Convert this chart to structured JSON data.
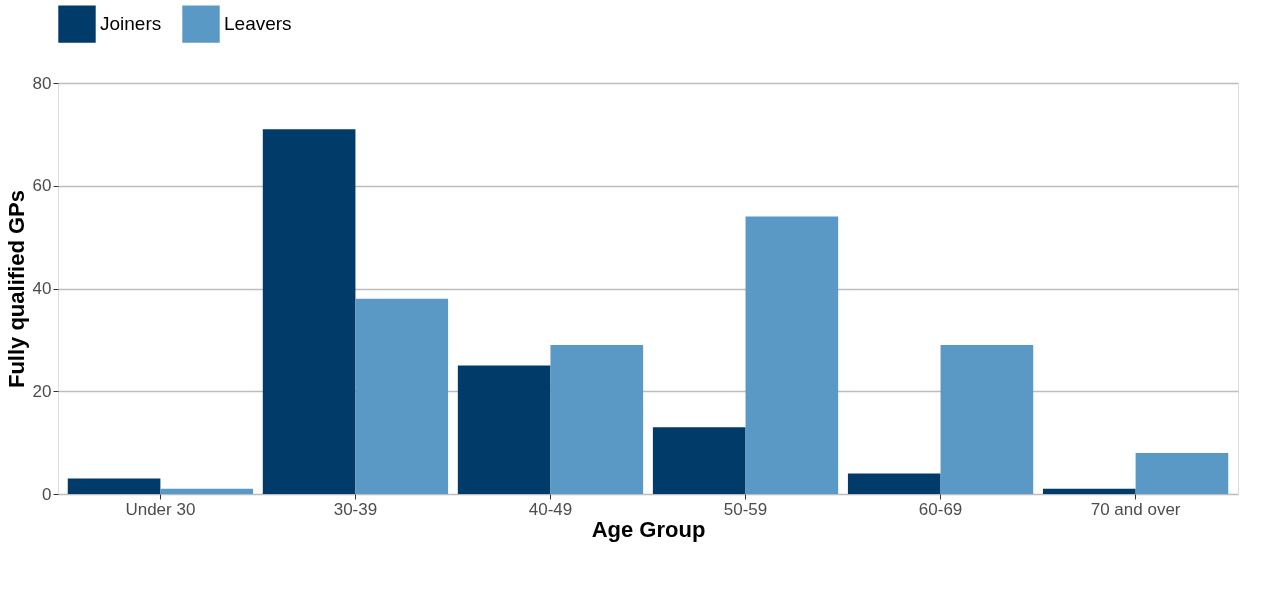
{
  "chart_data": {
    "type": "bar",
    "xlabel": "Age Group",
    "ylabel": "Fully qualified GPs",
    "categories": [
      "Under 30",
      "30-39",
      "40-49",
      "50-59",
      "60-69",
      "70 and over"
    ],
    "series": [
      {
        "name": "Joiners",
        "color": "#003b6a",
        "values": [
          3,
          71,
          25,
          13,
          4,
          1
        ]
      },
      {
        "name": "Leavers",
        "color": "#5a98c6",
        "values": [
          1,
          38,
          29,
          54,
          29,
          8
        ]
      }
    ],
    "ylim": [
      0,
      80
    ],
    "yticks": [
      0,
      20,
      40,
      60,
      80
    ],
    "grid": "y",
    "legend": "top"
  }
}
